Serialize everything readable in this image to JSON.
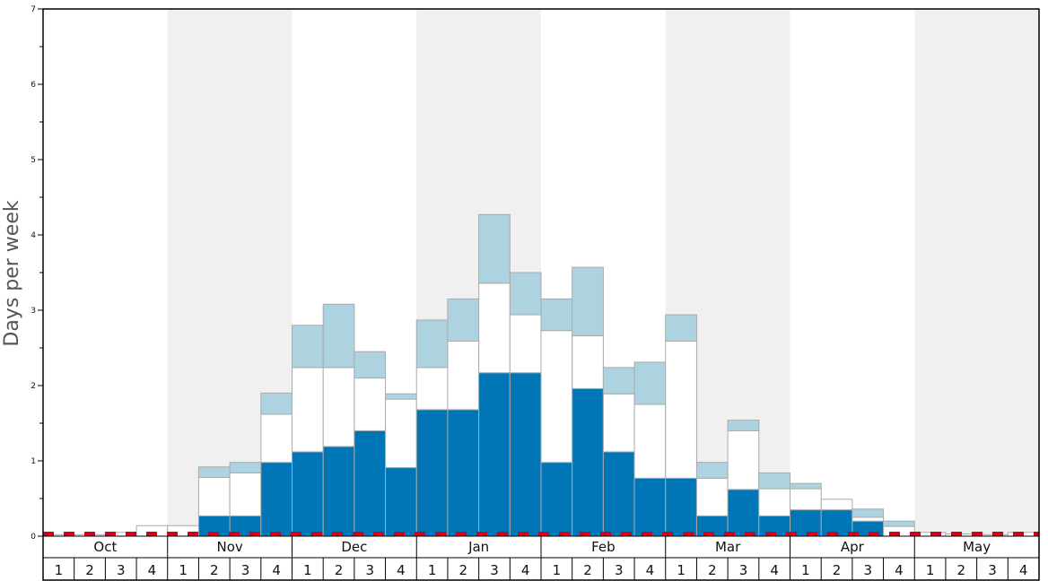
{
  "chart_data": {
    "type": "bar",
    "stacked": true,
    "ylabel": "Days per week",
    "ylim": [
      0,
      7
    ],
    "yticks": [
      0,
      1,
      2,
      3,
      4,
      5,
      6,
      7
    ],
    "months": [
      "Oct",
      "Nov",
      "Dec",
      "Jan",
      "Feb",
      "Mar",
      "Apr",
      "May"
    ],
    "weeks_per_month": [
      "1",
      "2",
      "3",
      "4"
    ],
    "threshold_line": 0.03,
    "colors": {
      "bottom": "#0076b6",
      "middle": "#ffffff",
      "top": "#aed3e0",
      "bar_edge": "#aaaaaa",
      "shade": "#f0f0f0",
      "threshold": "#d0021b"
    },
    "series": [
      {
        "values": [
          0,
          0,
          0,
          0,
          0,
          0.27,
          0.27,
          0.98,
          1.12,
          1.19,
          1.4,
          0.91,
          1.68,
          1.68,
          2.17,
          2.17,
          0.98,
          1.96,
          1.12,
          0.77,
          0.77,
          0.27,
          0.62,
          0.27,
          0.35,
          0.35,
          0.2,
          0,
          0,
          0,
          0,
          0
        ]
      },
      {
        "values": [
          0.02,
          0.02,
          0.05,
          0.14,
          0.14,
          0.51,
          0.57,
          0.64,
          1.12,
          1.05,
          0.7,
          0.91,
          0.56,
          0.91,
          1.19,
          0.77,
          1.75,
          0.7,
          0.77,
          0.98,
          1.82,
          0.5,
          0.78,
          0.36,
          0.28,
          0.14,
          0.05,
          0.13,
          0.05,
          0.03,
          0.02,
          0.05
        ]
      },
      {
        "values": [
          0,
          0,
          0,
          0,
          0,
          0.14,
          0.14,
          0.28,
          0.56,
          0.84,
          0.35,
          0.07,
          0.63,
          0.56,
          0.91,
          0.56,
          0.42,
          0.91,
          0.35,
          0.56,
          0.35,
          0.21,
          0.14,
          0.21,
          0.07,
          0,
          0.11,
          0.07,
          0,
          0,
          0,
          0
        ]
      }
    ]
  }
}
